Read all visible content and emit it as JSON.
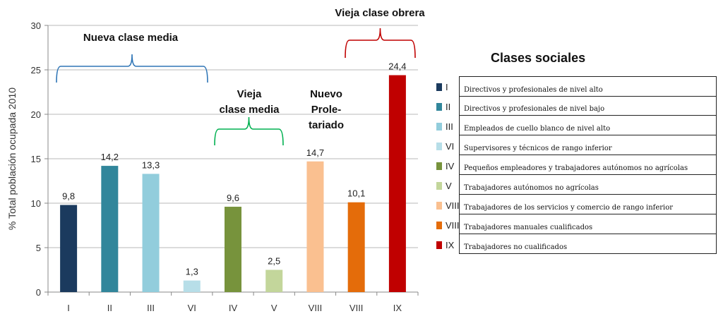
{
  "chart_data": {
    "type": "bar",
    "categories": [
      "I",
      "II",
      "III",
      "VI",
      "IV",
      "V",
      "VIII",
      "VIII",
      "IX"
    ],
    "values": [
      9.8,
      14.2,
      13.3,
      1.3,
      9.6,
      2.5,
      14.7,
      10.1,
      24.4
    ],
    "value_labels": [
      "9,8",
      "14,2",
      "13,3",
      "1,3",
      "9,6",
      "2,5",
      "14,7",
      "10,1",
      "24,4"
    ],
    "colors": [
      "#1b3a5e",
      "#31869b",
      "#92cddc",
      "#b7dee8",
      "#77933c",
      "#c3d69b",
      "#fac090",
      "#e46c0a",
      "#c00000"
    ],
    "ylabel": "% Total población ocupada 2010",
    "ylim": [
      0,
      30
    ],
    "yticks": [
      0,
      5,
      10,
      15,
      20,
      25,
      30
    ],
    "grid": true,
    "groups": [
      {
        "label_lines": [
          "Nueva clase media"
        ],
        "color": "#2e75b6",
        "bars": [
          0,
          3
        ]
      },
      {
        "label_lines": [
          "Vieja",
          "clase media"
        ],
        "color": "#00b050",
        "bars": [
          4,
          5
        ]
      },
      {
        "label_lines": [
          "Nuevo",
          "Prole-",
          "tariado"
        ],
        "color": "none",
        "bars": [
          6,
          6
        ]
      },
      {
        "label_lines": [
          "Vieja clase obrera"
        ],
        "color": "#c00000",
        "bars": [
          7,
          8
        ]
      }
    ]
  },
  "legend": {
    "title": "Clases sociales",
    "items": [
      {
        "code": "I",
        "color": "#1b3a5e",
        "desc": "Directivos y profesionales de nivel alto"
      },
      {
        "code": "II",
        "color": "#31869b",
        "desc": "Directivos y profesionales de nivel bajo"
      },
      {
        "code": "III",
        "color": "#92cddc",
        "desc": "Empleados de cuello blanco de nivel alto"
      },
      {
        "code": "VI",
        "color": "#b7dee8",
        "desc": "Supervisores y técnicos de rango inferior"
      },
      {
        "code": "IV",
        "color": "#77933c",
        "desc": "Pequeños empleadores y trabajadores autónomos no agrícolas"
      },
      {
        "code": "V",
        "color": "#c3d69b",
        "desc": "Trabajadores autónomos no agrícolas"
      },
      {
        "code": "VIII",
        "color": "#fac090",
        "desc": "Trabajadores de los servicios y comercio de rango inferior"
      },
      {
        "code": "VIII",
        "color": "#e46c0a",
        "desc": "Trabajadores manuales cualificados"
      },
      {
        "code": "IX",
        "color": "#c00000",
        "desc": "Trabajadores no cualificados"
      }
    ]
  }
}
